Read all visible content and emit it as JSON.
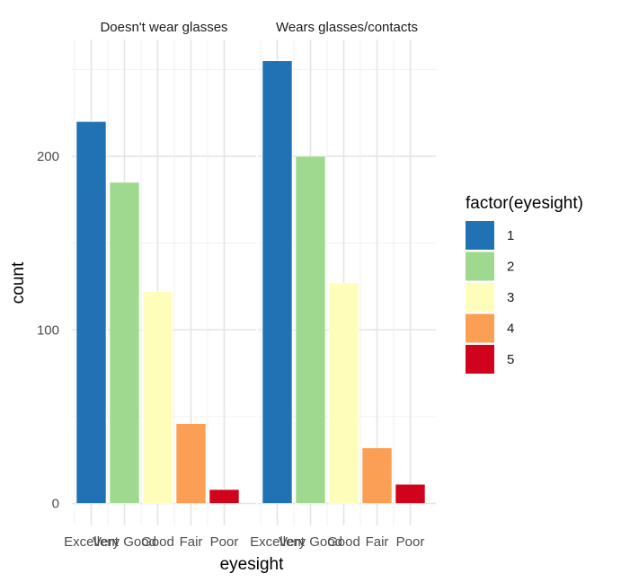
{
  "chart_data": {
    "type": "bar",
    "facet_by": "glasses",
    "panels": [
      {
        "strip_label": "Doesn't wear glasses",
        "categories": [
          "Excellent",
          "Very Good",
          "Good",
          "Fair",
          "Poor"
        ],
        "values": [
          220,
          185,
          122,
          46,
          8
        ]
      },
      {
        "strip_label": "Wears glasses/contacts",
        "categories": [
          "Excellent",
          "Very Good",
          "Good",
          "Fair",
          "Poor"
        ],
        "values": [
          255,
          200,
          127,
          32,
          11
        ]
      }
    ],
    "xlabel": "eyesight",
    "ylabel": "count",
    "ylim": [
      -5,
      268
    ],
    "y_ticks": [
      0,
      100,
      200
    ],
    "grid": true,
    "legend": {
      "title": "factor(eyesight)",
      "placement": "right",
      "entries": [
        {
          "label": "1",
          "color": "#2171b5"
        },
        {
          "label": "2",
          "color": "#9fd98f"
        },
        {
          "label": "3",
          "color": "#fefeba"
        },
        {
          "label": "4",
          "color": "#fb9f55"
        },
        {
          "label": "5",
          "color": "#d1021c"
        }
      ]
    },
    "colors": [
      "#2171b5",
      "#9fd98f",
      "#fefeba",
      "#fb9f55",
      "#d1021c"
    ]
  }
}
